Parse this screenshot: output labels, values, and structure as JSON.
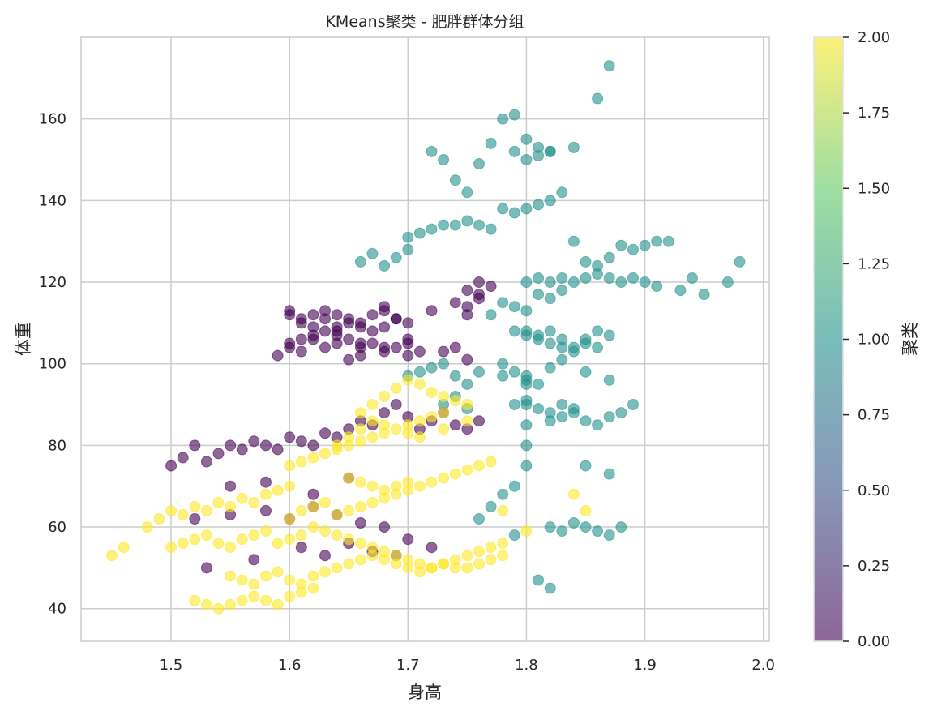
{
  "chart_data": {
    "type": "scatter",
    "title": "KMeans聚类 - 肥胖群体分组",
    "xlabel": "身高",
    "ylabel": "体重",
    "xlim": [
      1.424,
      2.005
    ],
    "ylim": [
      32,
      180
    ],
    "xticks": [
      1.5,
      1.6,
      1.7,
      1.8,
      1.9,
      2.0
    ],
    "xtick_labels": [
      "1.5",
      "1.6",
      "1.7",
      "1.8",
      "1.9",
      "2.0"
    ],
    "yticks": [
      40,
      60,
      80,
      100,
      120,
      140,
      160
    ],
    "ytick_labels": [
      "40",
      "60",
      "80",
      "100",
      "120",
      "140",
      "160"
    ],
    "grid": true,
    "point_alpha": 0.6,
    "colorbar": {
      "label": "聚类",
      "range": [
        0,
        2
      ],
      "ticks": [
        0,
        0.25,
        0.5,
        0.75,
        1.0,
        1.25,
        1.5,
        1.75,
        2.0
      ],
      "tick_labels": [
        "0.00",
        "0.25",
        "0.50",
        "0.75",
        "1.00",
        "1.25",
        "1.50",
        "1.75",
        "2.00"
      ],
      "colormap": "viridis",
      "colors": [
        "#440154",
        "#3b528b",
        "#21918c",
        "#5ec962",
        "#fde725"
      ]
    },
    "series": [
      {
        "cluster": 0,
        "color": "#440154",
        "x": [
          1.5,
          1.51,
          1.52,
          1.53,
          1.54,
          1.55,
          1.56,
          1.57,
          1.58,
          1.59,
          1.6,
          1.61,
          1.62,
          1.63,
          1.64,
          1.65,
          1.66,
          1.67,
          1.68,
          1.69,
          1.7,
          1.71,
          1.72,
          1.73,
          1.74,
          1.75,
          1.76,
          1.52,
          1.55,
          1.58,
          1.6,
          1.62,
          1.64,
          1.66,
          1.68,
          1.7,
          1.72,
          1.53,
          1.57,
          1.61,
          1.63,
          1.65,
          1.67,
          1.69,
          1.6,
          1.61,
          1.62,
          1.63,
          1.64,
          1.65,
          1.66,
          1.67,
          1.68,
          1.69,
          1.7,
          1.71,
          1.59,
          1.6,
          1.62,
          1.64,
          1.66,
          1.68,
          1.7,
          1.73,
          1.75,
          1.6,
          1.61,
          1.62,
          1.63,
          1.64,
          1.65,
          1.66,
          1.67,
          1.68,
          1.69,
          1.7,
          1.63,
          1.64,
          1.65,
          1.66,
          1.67,
          1.68,
          1.69,
          1.74,
          1.75,
          1.76,
          1.75,
          1.76,
          1.77,
          1.75,
          1.76,
          1.62,
          1.63,
          1.64,
          1.61,
          1.65,
          1.66,
          1.6,
          1.61,
          1.68,
          1.72,
          1.74,
          1.7,
          1.55,
          1.65,
          1.58,
          1.62
        ],
        "y": [
          75,
          77,
          80,
          76,
          78,
          80,
          79,
          81,
          80,
          79,
          82,
          81,
          80,
          83,
          82,
          84,
          86,
          85,
          88,
          90,
          87,
          84,
          86,
          88,
          85,
          84,
          86,
          62,
          63,
          64,
          62,
          65,
          63,
          61,
          60,
          57,
          55,
          50,
          52,
          55,
          53,
          56,
          54,
          53,
          105,
          106,
          107,
          104,
          105,
          106,
          104,
          105,
          103,
          104,
          105,
          103,
          102,
          104,
          106,
          107,
          105,
          104,
          102,
          103,
          101,
          112,
          111,
          112,
          113,
          112,
          111,
          110,
          112,
          113,
          111,
          110,
          108,
          109,
          110,
          109,
          108,
          109,
          111,
          115,
          118,
          120,
          112,
          116,
          119,
          114,
          117,
          109,
          111,
          108,
          103,
          101,
          102,
          113,
          110,
          114,
          113,
          104,
          106,
          70,
          72,
          71,
          68
        ]
      },
      {
        "cluster": 1,
        "color": "#21918c",
        "x": [
          1.7,
          1.71,
          1.72,
          1.73,
          1.74,
          1.75,
          1.76,
          1.77,
          1.78,
          1.79,
          1.8,
          1.81,
          1.82,
          1.83,
          1.84,
          1.85,
          1.86,
          1.87,
          1.88,
          1.89,
          1.9,
          1.91,
          1.92,
          1.93,
          1.94,
          1.95,
          1.97,
          1.98,
          1.8,
          1.81,
          1.82,
          1.83,
          1.84,
          1.85,
          1.86,
          1.87,
          1.88,
          1.89,
          1.9,
          1.91,
          1.8,
          1.81,
          1.82,
          1.83,
          1.84,
          1.85,
          1.86,
          1.87,
          1.79,
          1.8,
          1.81,
          1.82,
          1.83,
          1.84,
          1.85,
          1.86,
          1.8,
          1.8,
          1.8,
          1.8,
          1.8,
          1.79,
          1.78,
          1.77,
          1.76,
          1.82,
          1.83,
          1.84,
          1.85,
          1.86,
          1.87,
          1.88,
          1.89,
          1.72,
          1.73,
          1.74,
          1.75,
          1.76,
          1.77,
          1.78,
          1.79,
          1.8,
          1.81,
          1.82,
          1.79,
          1.8,
          1.81,
          1.82,
          1.84,
          1.86,
          1.87,
          1.7,
          1.71,
          1.72,
          1.73,
          1.74,
          1.75,
          1.76,
          1.78,
          1.8,
          1.66,
          1.67,
          1.68,
          1.69,
          1.7,
          1.77,
          1.78,
          1.79,
          1.8,
          1.81,
          1.82,
          1.83,
          1.79,
          1.8,
          1.81,
          1.82,
          1.83,
          1.84,
          1.78,
          1.79,
          1.8,
          1.81,
          1.82,
          1.83,
          1.85,
          1.87,
          1.73,
          1.74,
          1.75,
          1.85,
          1.87,
          1.82,
          1.83,
          1.84,
          1.85,
          1.86,
          1.87,
          1.88,
          1.79,
          1.81,
          1.82
        ],
        "y": [
          131,
          132,
          133,
          134,
          134,
          135,
          134,
          133,
          138,
          137,
          138,
          139,
          140,
          142,
          130,
          125,
          124,
          126,
          129,
          128,
          129,
          130,
          130,
          118,
          121,
          117,
          120,
          125,
          120,
          121,
          120,
          121,
          120,
          121,
          122,
          121,
          120,
          121,
          120,
          119,
          108,
          107,
          108,
          106,
          104,
          106,
          108,
          107,
          108,
          107,
          106,
          105,
          104,
          103,
          105,
          104,
          95,
          90,
          85,
          80,
          75,
          70,
          68,
          65,
          62,
          86,
          87,
          88,
          86,
          85,
          87,
          88,
          90,
          152,
          150,
          145,
          142,
          149,
          154,
          160,
          161,
          155,
          153,
          152,
          152,
          150,
          151,
          152,
          153,
          165,
          173,
          97,
          98,
          99,
          100,
          97,
          95,
          98,
          97,
          96,
          125,
          127,
          124,
          126,
          128,
          112,
          115,
          114,
          113,
          117,
          116,
          118,
          90,
          91,
          89,
          88,
          90,
          89,
          100,
          98,
          97,
          95,
          99,
          101,
          98,
          96,
          90,
          92,
          89,
          75,
          73,
          60,
          59,
          61,
          60,
          59,
          58,
          60,
          58,
          47,
          45
        ]
      },
      {
        "cluster": 2,
        "color": "#fde725",
        "x": [
          1.45,
          1.46,
          1.48,
          1.49,
          1.5,
          1.51,
          1.52,
          1.53,
          1.54,
          1.55,
          1.56,
          1.57,
          1.58,
          1.59,
          1.6,
          1.52,
          1.53,
          1.54,
          1.55,
          1.56,
          1.57,
          1.58,
          1.59,
          1.6,
          1.61,
          1.62,
          1.5,
          1.51,
          1.52,
          1.53,
          1.54,
          1.55,
          1.56,
          1.57,
          1.58,
          1.59,
          1.6,
          1.61,
          1.62,
          1.63,
          1.64,
          1.65,
          1.66,
          1.67,
          1.68,
          1.69,
          1.7,
          1.71,
          1.72,
          1.73,
          1.74,
          1.75,
          1.76,
          1.77,
          1.78,
          1.6,
          1.61,
          1.62,
          1.63,
          1.64,
          1.65,
          1.66,
          1.67,
          1.68,
          1.69,
          1.7,
          1.71,
          1.72,
          1.73,
          1.74,
          1.75,
          1.76,
          1.77,
          1.6,
          1.61,
          1.62,
          1.63,
          1.64,
          1.65,
          1.66,
          1.67,
          1.68,
          1.69,
          1.7,
          1.71,
          1.72,
          1.73,
          1.55,
          1.56,
          1.57,
          1.58,
          1.59,
          1.6,
          1.61,
          1.62,
          1.63,
          1.64,
          1.65,
          1.66,
          1.67,
          1.68,
          1.69,
          1.7,
          1.71,
          1.72,
          1.73,
          1.74,
          1.75,
          1.76,
          1.77,
          1.78,
          1.66,
          1.67,
          1.68,
          1.69,
          1.7,
          1.71,
          1.72,
          1.73,
          1.74,
          1.75,
          1.65,
          1.66,
          1.67,
          1.68,
          1.69,
          1.7,
          1.64,
          1.65,
          1.66,
          1.67,
          1.68,
          1.7,
          1.71,
          1.73,
          1.75,
          1.78,
          1.8,
          1.84,
          1.85
        ],
        "y": [
          53,
          55,
          60,
          62,
          64,
          63,
          65,
          64,
          66,
          65,
          67,
          66,
          68,
          69,
          70,
          42,
          41,
          40,
          41,
          42,
          43,
          42,
          41,
          43,
          44,
          45,
          55,
          56,
          57,
          58,
          56,
          55,
          57,
          58,
          59,
          56,
          57,
          58,
          60,
          59,
          58,
          57,
          56,
          55,
          54,
          53,
          52,
          51,
          50,
          51,
          50,
          50,
          51,
          52,
          53,
          62,
          64,
          65,
          66,
          63,
          64,
          65,
          66,
          67,
          68,
          69,
          70,
          71,
          72,
          73,
          74,
          75,
          76,
          75,
          76,
          77,
          78,
          79,
          80,
          81,
          82,
          83,
          84,
          85,
          86,
          87,
          88,
          48,
          47,
          46,
          48,
          49,
          47,
          46,
          48,
          49,
          50,
          51,
          52,
          53,
          52,
          51,
          50,
          49,
          50,
          51,
          52,
          53,
          54,
          55,
          56,
          88,
          90,
          92,
          94,
          96,
          95,
          93,
          92,
          91,
          90,
          72,
          71,
          70,
          69,
          70,
          71,
          80,
          82,
          84,
          86,
          85,
          83,
          82,
          84,
          86,
          64,
          59,
          68,
          64
        ]
      }
    ]
  }
}
